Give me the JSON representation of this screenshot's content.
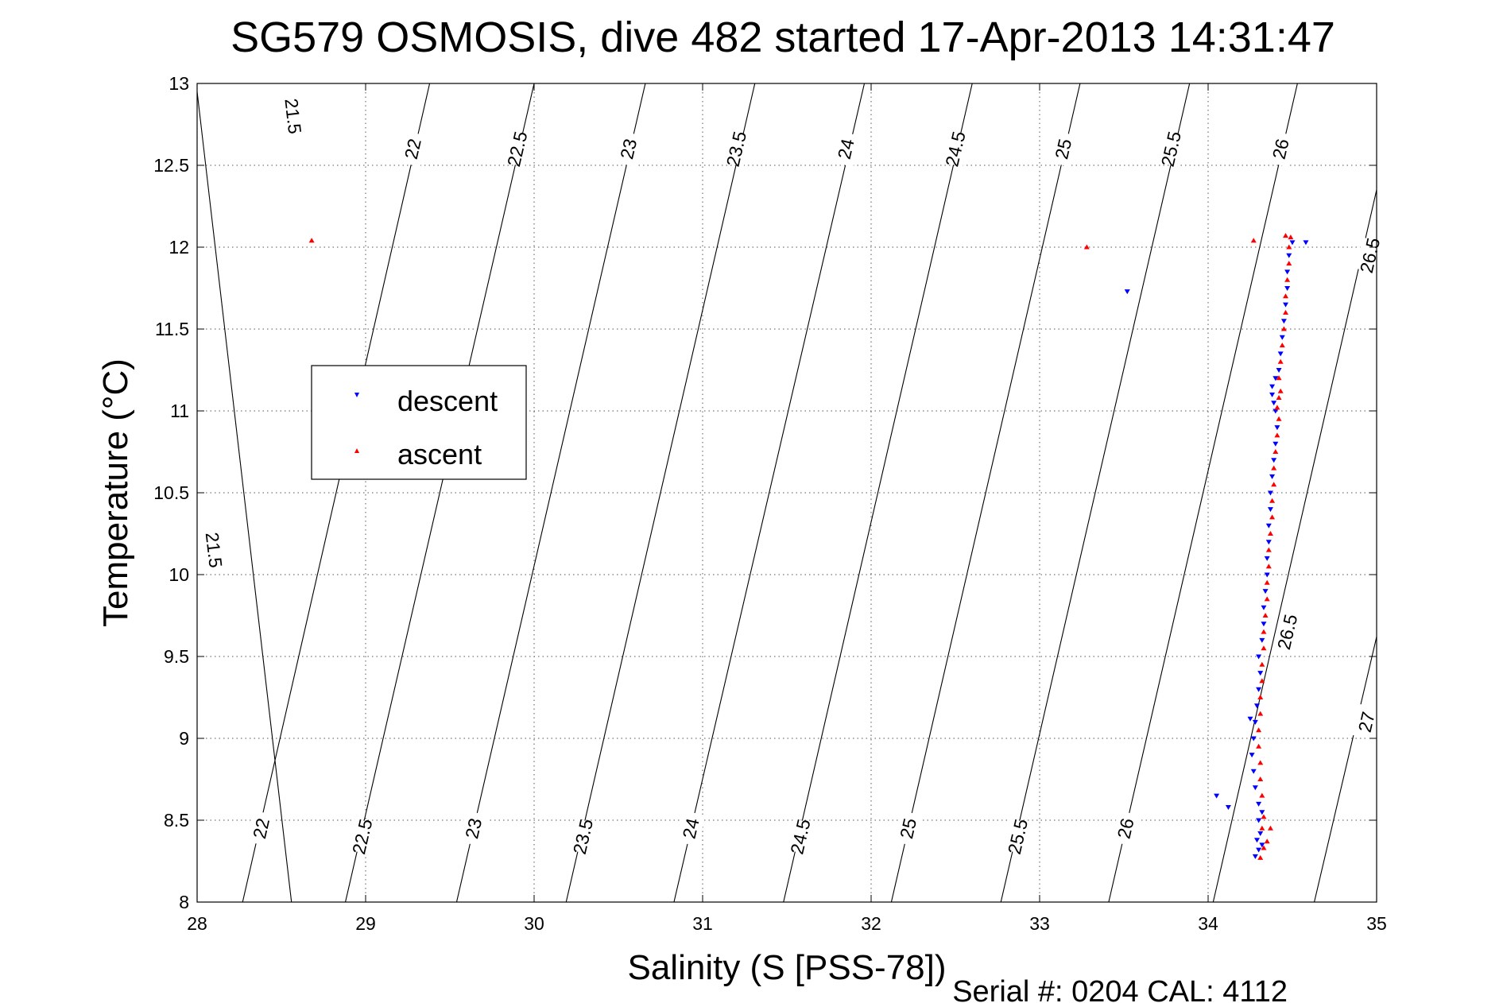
{
  "chart_data": {
    "type": "scatter",
    "title": "SG579 OSMOSIS, dive 482 started 17-Apr-2013 14:31:47",
    "xlabel": "Salinity (S [PSS-78])",
    "ylabel": "Temperature (°C)",
    "xlim": [
      28,
      35
    ],
    "ylim": [
      8,
      13
    ],
    "xticks": [
      28,
      29,
      30,
      31,
      32,
      33,
      34,
      35
    ],
    "yticks": [
      8,
      8.5,
      9,
      9.5,
      10,
      10.5,
      11,
      11.5,
      12,
      12.5,
      13
    ],
    "grid": true,
    "legend_position": "left-middle",
    "footer": "Serial #: 0204  CAL: 4112",
    "series": [
      {
        "name": "descent",
        "color": "#0000ff",
        "marker": "triangle-down",
        "points": [
          [
            34.28,
            8.28
          ],
          [
            34.3,
            8.32
          ],
          [
            34.32,
            8.35
          ],
          [
            34.29,
            8.38
          ],
          [
            34.31,
            8.42
          ],
          [
            34.3,
            8.5
          ],
          [
            34.32,
            8.55
          ],
          [
            34.3,
            8.6
          ],
          [
            34.28,
            8.7
          ],
          [
            34.27,
            8.8
          ],
          [
            34.26,
            8.9
          ],
          [
            34.27,
            9.0
          ],
          [
            34.28,
            9.1
          ],
          [
            34.29,
            9.2
          ],
          [
            34.3,
            9.3
          ],
          [
            34.31,
            9.4
          ],
          [
            34.3,
            9.5
          ],
          [
            34.32,
            9.6
          ],
          [
            34.33,
            9.7
          ],
          [
            34.33,
            9.8
          ],
          [
            34.34,
            9.9
          ],
          [
            34.35,
            10.0
          ],
          [
            34.35,
            10.1
          ],
          [
            34.36,
            10.2
          ],
          [
            34.36,
            10.3
          ],
          [
            34.37,
            10.4
          ],
          [
            34.37,
            10.5
          ],
          [
            34.38,
            10.6
          ],
          [
            34.39,
            10.7
          ],
          [
            34.4,
            10.8
          ],
          [
            34.41,
            10.9
          ],
          [
            34.4,
            11.0
          ],
          [
            34.39,
            11.05
          ],
          [
            34.38,
            11.1
          ],
          [
            34.38,
            11.15
          ],
          [
            34.4,
            11.2
          ],
          [
            34.42,
            11.25
          ],
          [
            34.43,
            11.35
          ],
          [
            34.44,
            11.45
          ],
          [
            34.45,
            11.55
          ],
          [
            34.46,
            11.65
          ],
          [
            34.47,
            11.75
          ],
          [
            34.47,
            11.85
          ],
          [
            34.48,
            11.95
          ],
          [
            34.5,
            12.03
          ],
          [
            34.58,
            12.03
          ],
          [
            34.05,
            8.65
          ],
          [
            34.12,
            8.58
          ],
          [
            34.25,
            9.12
          ],
          [
            33.52,
            11.73
          ]
        ]
      },
      {
        "name": "ascent",
        "color": "#ff0000",
        "marker": "triangle-up",
        "points": [
          [
            34.31,
            8.27
          ],
          [
            34.33,
            8.33
          ],
          [
            34.35,
            8.37
          ],
          [
            34.32,
            8.45
          ],
          [
            34.33,
            8.52
          ],
          [
            34.32,
            8.65
          ],
          [
            34.31,
            8.75
          ],
          [
            34.31,
            8.85
          ],
          [
            34.3,
            8.95
          ],
          [
            34.3,
            9.05
          ],
          [
            34.31,
            9.15
          ],
          [
            34.31,
            9.25
          ],
          [
            34.32,
            9.35
          ],
          [
            34.32,
            9.45
          ],
          [
            34.33,
            9.55
          ],
          [
            34.33,
            9.65
          ],
          [
            34.34,
            9.75
          ],
          [
            34.35,
            9.85
          ],
          [
            34.35,
            9.95
          ],
          [
            34.36,
            10.05
          ],
          [
            34.36,
            10.15
          ],
          [
            34.37,
            10.25
          ],
          [
            34.38,
            10.35
          ],
          [
            34.38,
            10.45
          ],
          [
            34.39,
            10.55
          ],
          [
            34.39,
            10.65
          ],
          [
            34.4,
            10.75
          ],
          [
            34.41,
            10.85
          ],
          [
            34.42,
            10.95
          ],
          [
            34.41,
            11.02
          ],
          [
            34.42,
            11.08
          ],
          [
            34.43,
            11.12
          ],
          [
            34.42,
            11.2
          ],
          [
            34.43,
            11.3
          ],
          [
            34.44,
            11.4
          ],
          [
            34.45,
            11.5
          ],
          [
            34.46,
            11.6
          ],
          [
            34.46,
            11.7
          ],
          [
            34.47,
            11.8
          ],
          [
            34.48,
            11.9
          ],
          [
            34.48,
            12.0
          ],
          [
            34.49,
            12.06
          ],
          [
            34.46,
            12.07
          ],
          [
            34.27,
            12.04
          ],
          [
            33.28,
            12.0
          ],
          [
            28.68,
            12.04
          ],
          [
            34.37,
            8.45
          ]
        ]
      }
    ],
    "density_contours": [
      {
        "label": "21.5",
        "points": [
          [
            28.0,
            12.95
          ],
          [
            28.56,
            8.0
          ]
        ],
        "labels_at": [
          [
            28.1,
            10.15
          ],
          [
            28.57,
            12.8
          ]
        ]
      },
      {
        "label": "22",
        "points": [
          [
            28.27,
            8.0
          ],
          [
            29.38,
            13.0
          ]
        ],
        "labels_at": [
          [
            28.38,
            8.45
          ],
          [
            29.28,
            12.6
          ]
        ]
      },
      {
        "label": "22.5",
        "points": [
          [
            28.88,
            8.0
          ],
          [
            30.0,
            13.0
          ]
        ],
        "labels_at": [
          [
            28.98,
            8.4
          ],
          [
            29.9,
            12.6
          ]
        ]
      },
      {
        "label": "23",
        "points": [
          [
            29.54,
            8.0
          ],
          [
            30.66,
            13.0
          ]
        ],
        "labels_at": [
          [
            29.64,
            8.45
          ],
          [
            30.56,
            12.6
          ]
        ]
      },
      {
        "label": "23.5",
        "points": [
          [
            30.19,
            8.0
          ],
          [
            31.31,
            13.0
          ]
        ],
        "labels_at": [
          [
            30.29,
            8.4
          ],
          [
            31.2,
            12.6
          ]
        ]
      },
      {
        "label": "24",
        "points": [
          [
            30.83,
            8.0
          ],
          [
            31.96,
            13.0
          ]
        ],
        "labels_at": [
          [
            30.93,
            8.45
          ],
          [
            31.85,
            12.6
          ]
        ]
      },
      {
        "label": "24.5",
        "points": [
          [
            31.48,
            8.0
          ],
          [
            32.6,
            13.0
          ]
        ],
        "labels_at": [
          [
            31.58,
            8.4
          ],
          [
            32.5,
            12.6
          ]
        ]
      },
      {
        "label": "25",
        "points": [
          [
            32.12,
            8.0
          ],
          [
            33.24,
            13.0
          ]
        ],
        "labels_at": [
          [
            32.22,
            8.45
          ],
          [
            33.14,
            12.6
          ]
        ]
      },
      {
        "label": "25.5",
        "points": [
          [
            32.77,
            8.0
          ],
          [
            33.89,
            13.0
          ]
        ],
        "labels_at": [
          [
            32.87,
            8.4
          ],
          [
            33.78,
            12.6
          ]
        ]
      },
      {
        "label": "26",
        "points": [
          [
            33.41,
            8.0
          ],
          [
            34.53,
            13.0
          ]
        ],
        "labels_at": [
          [
            33.51,
            8.45
          ],
          [
            34.43,
            12.6
          ]
        ]
      },
      {
        "label": "26.5",
        "points": [
          [
            34.03,
            8.0
          ],
          [
            35.0,
            12.35
          ]
        ],
        "labels_at": [
          [
            34.47,
            9.65
          ],
          [
            34.96,
            11.95
          ]
        ]
      },
      {
        "label": "27",
        "points": [
          [
            34.63,
            8.0
          ],
          [
            35.0,
            9.62
          ]
        ],
        "labels_at": [
          [
            34.94,
            9.1
          ]
        ]
      }
    ]
  }
}
